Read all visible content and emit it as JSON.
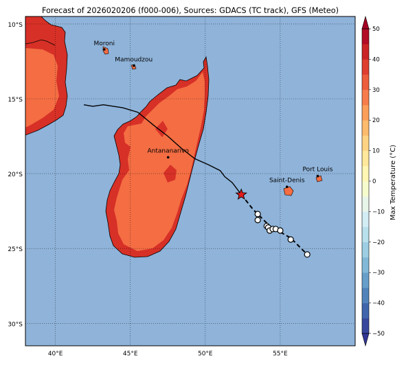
{
  "title": "Forecast of 2026020206 (f000-006), Sources: GDACS (TC track), GFS (Meteo)",
  "axes": {
    "y_ticks": [
      "10°S",
      "15°S",
      "20°S",
      "25°S",
      "30°S"
    ],
    "x_ticks": [
      "40°E",
      "45°E",
      "50°E",
      "55°E"
    ]
  },
  "places": [
    {
      "id": "moroni",
      "name": "Moroni"
    },
    {
      "id": "mamoudzou",
      "name": "Mamoudzou"
    },
    {
      "id": "antananarivo",
      "name": "Antananarivo"
    },
    {
      "id": "saint-denis",
      "name": "Saint-Denis"
    },
    {
      "id": "port-louis",
      "name": "Port Louis"
    }
  ],
  "colorbar": {
    "label": "Max Temperature (°C)",
    "ticks": [
      "50",
      "40",
      "30",
      "20",
      "10",
      "0",
      "−10",
      "−20",
      "−30",
      "−40",
      "−50"
    ]
  },
  "colors": {
    "ocean": "#8fb3d9",
    "land_hot": "#f46d43",
    "land_hotter": "#d73027",
    "track": "#000000",
    "current_position": "#e41a1c"
  },
  "chart_data": {
    "type": "map",
    "extent": {
      "lon": [
        38,
        60
      ],
      "lat": [
        -31.5,
        -9.5
      ]
    },
    "gridlines": true,
    "track_past": [
      [
        41.9,
        -15.4
      ],
      [
        42.5,
        -15.5
      ],
      [
        43.2,
        -15.4
      ],
      [
        44.5,
        -15.6
      ],
      [
        45.5,
        -15.9
      ],
      [
        46.6,
        -16.8
      ],
      [
        47.5,
        -17.5
      ],
      [
        48.4,
        -18.3
      ],
      [
        49.3,
        -19.0
      ],
      [
        50.2,
        -19.4
      ],
      [
        51.0,
        -19.8
      ],
      [
        51.3,
        -20.2
      ],
      [
        51.8,
        -20.6
      ],
      [
        52.4,
        -21.4
      ]
    ],
    "track_forecast": [
      [
        52.4,
        -21.4
      ],
      [
        53.2,
        -22.4
      ],
      [
        53.6,
        -22.8
      ],
      [
        54.3,
        -23.5
      ],
      [
        55.0,
        -23.9
      ],
      [
        55.7,
        -24.3
      ],
      [
        56.8,
        -25.4
      ]
    ],
    "current_position": [
      52.4,
      -21.4
    ],
    "forecast_points": [
      [
        53.5,
        -22.7
      ],
      [
        53.5,
        -23.1
      ],
      [
        54.1,
        -23.5
      ],
      [
        54.2,
        -23.6
      ],
      [
        54.3,
        -23.8
      ],
      [
        54.5,
        -23.7
      ],
      [
        54.7,
        -23.7
      ],
      [
        55.0,
        -23.8
      ],
      [
        55.7,
        -24.4
      ],
      [
        56.8,
        -25.4
      ]
    ],
    "place_coords": {
      "moroni": [
        43.26,
        -11.7
      ],
      "mamoudzou": [
        45.23,
        -12.78
      ],
      "antananarivo": [
        47.52,
        -18.91
      ],
      "saint-denis": [
        55.45,
        -20.88
      ],
      "port-louis": [
        57.5,
        -20.16
      ]
    },
    "colorbar_range": [
      -50,
      50
    ],
    "colorbar_step": 5
  }
}
